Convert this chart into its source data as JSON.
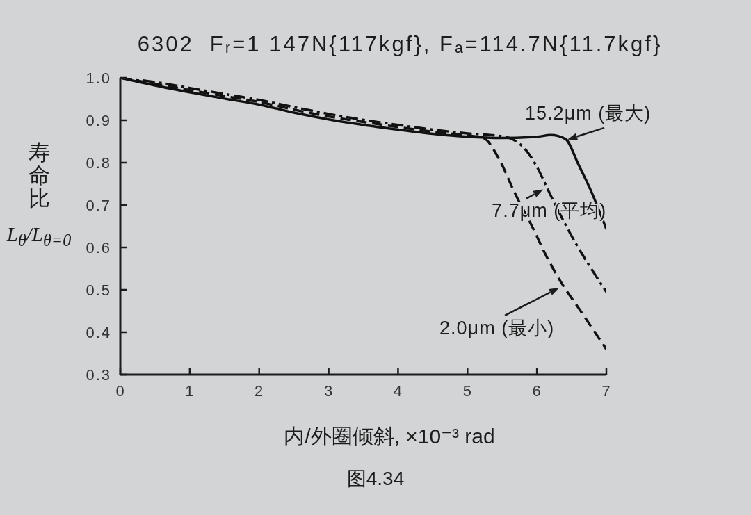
{
  "chart_data": {
    "type": "line",
    "title": "6302  Fᵣ=1 147N{117kgf}, Fₐ=114.7N{11.7kgf}",
    "xlabel": "内/外圈倾斜, ×10⁻³ rad",
    "ylabel": "寿命比 L$_{θ}$/L$_{θ=0}$",
    "annotations": [
      {
        "text": "15.2μm (最大)",
        "x": 6.41,
        "y": 0.856
      },
      {
        "text": "7.7μm (平均)",
        "x": 6.15,
        "y": 0.74
      },
      {
        "text": "2.0μm (最小)",
        "x": 6.4,
        "y": 0.505
      },
      "图4.34"
    ],
    "xlim": [
      0,
      7
    ],
    "ylim": [
      0.3,
      1
    ],
    "xticks": [
      0,
      1,
      2,
      3,
      4,
      5,
      6,
      7
    ],
    "yticks": [
      0.3,
      0.4,
      0.5,
      0.6,
      0.7,
      0.8,
      0.9,
      {
        "value": 1,
        "label": "1.0"
      }
    ],
    "marker": "none",
    "series": [
      {
        "color": "#111111",
        "line_style": "solid",
        "x": [
          0,
          0.5,
          1,
          1.5,
          2,
          2.5,
          3,
          3.5,
          4,
          4.5,
          5,
          5.5,
          6,
          6.2,
          6.41,
          6.6,
          6.78,
          7
        ],
        "values": [
          1,
          0.982,
          0.966,
          0.951,
          0.937,
          0.918,
          0.902,
          0.889,
          0.878,
          0.868,
          0.861,
          0.858,
          0.861,
          0.865,
          0.856,
          0.795,
          0.733,
          0.643
        ]
      },
      {
        "color": "#111111",
        "line_style": "dashdot",
        "x": [
          0,
          0.5,
          1,
          1.5,
          2,
          2.5,
          3,
          3.5,
          4,
          4.5,
          5,
          5.5,
          5.65,
          5.85,
          6,
          6.18,
          6.41,
          7
        ],
        "values": [
          1,
          0.99,
          0.976,
          0.962,
          0.948,
          0.931,
          0.915,
          0.901,
          0.889,
          0.878,
          0.869,
          0.862,
          0.855,
          0.828,
          0.79,
          0.729,
          0.654,
          0.495
        ]
      },
      {
        "color": "#111111",
        "line_style": "dashed",
        "x": [
          0,
          0.5,
          1,
          1.5,
          2,
          2.5,
          3,
          3.5,
          4,
          4.5,
          5,
          5.23,
          5.45,
          5.68,
          5.95,
          6.15,
          6.31,
          6.65,
          7
        ],
        "values": [
          1,
          0.986,
          0.971,
          0.957,
          0.943,
          0.925,
          0.909,
          0.896,
          0.884,
          0.873,
          0.864,
          0.858,
          0.81,
          0.729,
          0.643,
          0.575,
          0.528,
          0.445,
          0.36
        ]
      }
    ]
  }
}
